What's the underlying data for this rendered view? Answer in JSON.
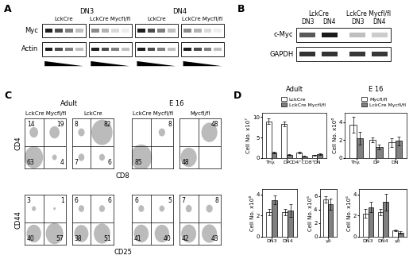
{
  "panel_labels": [
    "A",
    "B",
    "C",
    "D"
  ],
  "panel_A": {
    "columns": [
      {
        "stage": "DN3",
        "groups": [
          "LckCre",
          "LckCre Mycfl/fl"
        ]
      },
      {
        "stage": "DN4",
        "groups": [
          "LckCre",
          "LckCre Mycfl/fl"
        ]
      }
    ],
    "rows": [
      "Myc",
      "Actin"
    ]
  },
  "panel_B": {
    "groups": [
      "LckCre",
      "LckCre Mycfl/fl"
    ],
    "lanes": [
      "DN3",
      "DN4",
      "DN3",
      "DN4"
    ],
    "rows": [
      "c-Myc",
      "GAPDH"
    ]
  },
  "panel_C": {
    "conditions": [
      {
        "name": "Adult",
        "samples": [
          "LckCre Mycfl/fl",
          "LckCre"
        ]
      },
      {
        "name": "E 16",
        "samples": [
          "LckCre Mycfl/fl",
          "Mycfl/fl"
        ]
      }
    ],
    "rows": [
      {
        "x_label": "CD8",
        "y_label": "CD4",
        "quadrants": [
          {
            "upper_left": 14,
            "upper_right": 19,
            "lower_left": 63,
            "lower_right": 4
          },
          {
            "upper_left": 8,
            "upper_right": 82,
            "lower_left": 7,
            "lower_right": 6
          },
          {
            "upper_right": 8,
            "lower_left": 85
          },
          {
            "upper_right": 48,
            "lower_left": 48
          }
        ]
      },
      {
        "x_label": "CD25",
        "y_label": "CD44",
        "quadrants": [
          {
            "upper_left": 3,
            "upper_right": 1,
            "lower_left": 40,
            "lower_right": 57
          },
          {
            "upper_left": 6,
            "upper_right": 6,
            "lower_left": 38,
            "lower_right": 51
          },
          {
            "upper_left": 6,
            "upper_right": 5,
            "lower_left": 41,
            "lower_right": 40
          },
          {
            "upper_left": 7,
            "upper_right": 8,
            "lower_left": 42,
            "lower_right": 43
          }
        ]
      }
    ]
  },
  "chart_data": [
    {
      "type": "bar",
      "title": "Adult",
      "y_label": "Cell No. x10⁷",
      "categories": [
        "Thy.",
        "DP",
        "CD4⁺CD8⁺",
        "DN"
      ],
      "series": [
        {
          "name": "LckCre",
          "color": "#ffffff",
          "values": [
            9.0,
            8.3,
            1.2,
            0.7
          ],
          "errors": [
            0.6,
            0.6,
            0.2,
            0.1
          ]
        },
        {
          "name": "LckCre Mycfl/fl",
          "color": "#808080",
          "values": [
            1.3,
            0.8,
            0.4,
            0.9
          ],
          "errors": [
            0.15,
            0.1,
            0.05,
            0.15
          ]
        }
      ],
      "ylim": [
        0,
        11
      ],
      "yticks": [
        0,
        5,
        10
      ],
      "legend": "upper right"
    },
    {
      "type": "bar",
      "title": "E 16",
      "y_label": "Cell No. x10⁶",
      "categories": [
        "Thy.",
        "DP",
        "DN"
      ],
      "series": [
        {
          "name": "Mycfl/fl",
          "color": "#ffffff",
          "values": [
            3.7,
            2.0,
            1.7
          ],
          "errors": [
            0.9,
            0.3,
            0.5
          ]
        },
        {
          "name": "LckCre Mycfl/fl",
          "color": "#808080",
          "values": [
            2.2,
            1.2,
            1.9
          ],
          "errors": [
            0.7,
            0.3,
            0.5
          ]
        }
      ],
      "ylim": [
        0,
        5
      ],
      "yticks": [
        0,
        2,
        4
      ],
      "legend": "upper right"
    },
    {
      "type": "bar",
      "y_label": "Cell No. x10⁶",
      "categories": [
        "DN3",
        "DN4"
      ],
      "series": [
        {
          "color": "#ffffff",
          "values": [
            2.3,
            2.3
          ],
          "errors": [
            0.3,
            0.3
          ]
        },
        {
          "color": "#808080",
          "values": [
            3.5,
            2.5
          ],
          "errors": [
            0.4,
            0.6
          ]
        }
      ],
      "ylim": [
        0,
        4.5
      ],
      "yticks": [
        0,
        2,
        4
      ]
    },
    {
      "type": "bar",
      "y_label": "Cell No. x10⁵",
      "categories": [
        "γδ"
      ],
      "series": [
        {
          "color": "#ffffff",
          "values": [
            5.5
          ],
          "errors": [
            0.5
          ]
        },
        {
          "color": "#808080",
          "values": [
            4.8
          ],
          "errors": [
            0.8
          ]
        }
      ],
      "ylim": [
        0,
        7
      ],
      "yticks": [
        0,
        2,
        4,
        6
      ]
    },
    {
      "type": "bar",
      "y_label": "Cell No. x10⁵",
      "categories": [
        "DN3",
        "DN4",
        "γδ"
      ],
      "series": [
        {
          "color": "#ffffff",
          "values": [
            2.2,
            2.3,
            0.6
          ],
          "errors": [
            0.4,
            0.3,
            0.1
          ]
        },
        {
          "color": "#808080",
          "values": [
            2.8,
            3.3,
            0.4
          ],
          "errors": [
            0.5,
            0.8,
            0.1
          ]
        }
      ],
      "ylim": [
        0,
        4.5
      ],
      "yticks": [
        0,
        2,
        4
      ]
    }
  ]
}
